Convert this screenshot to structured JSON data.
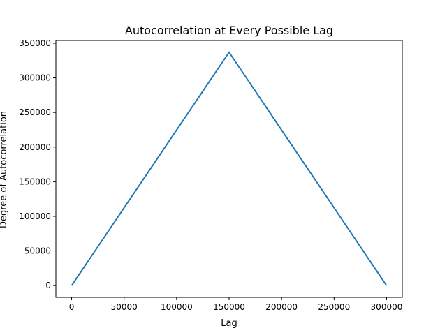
{
  "chart_data": {
    "type": "line",
    "title": "Autocorrelation at Every Possible Lag",
    "xlabel": "Lag",
    "ylabel": "Degree of Autocorrelation",
    "xlim": [
      -15000,
      315000
    ],
    "ylim": [
      -17000,
      354000
    ],
    "x_ticks": [
      0,
      50000,
      100000,
      150000,
      200000,
      250000,
      300000
    ],
    "x_tick_labels": [
      "0",
      "50000",
      "100000",
      "150000",
      "200000",
      "250000",
      "300000"
    ],
    "y_ticks": [
      0,
      50000,
      100000,
      150000,
      200000,
      250000,
      300000,
      350000
    ],
    "y_tick_labels": [
      "0",
      "50000",
      "100000",
      "150000",
      "200000",
      "250000",
      "300000",
      "350000"
    ],
    "grid": false,
    "series": [
      {
        "color": "#1f77b4",
        "x": [
          0,
          150000,
          300000
        ],
        "y": [
          0,
          337000,
          0
        ]
      }
    ]
  }
}
